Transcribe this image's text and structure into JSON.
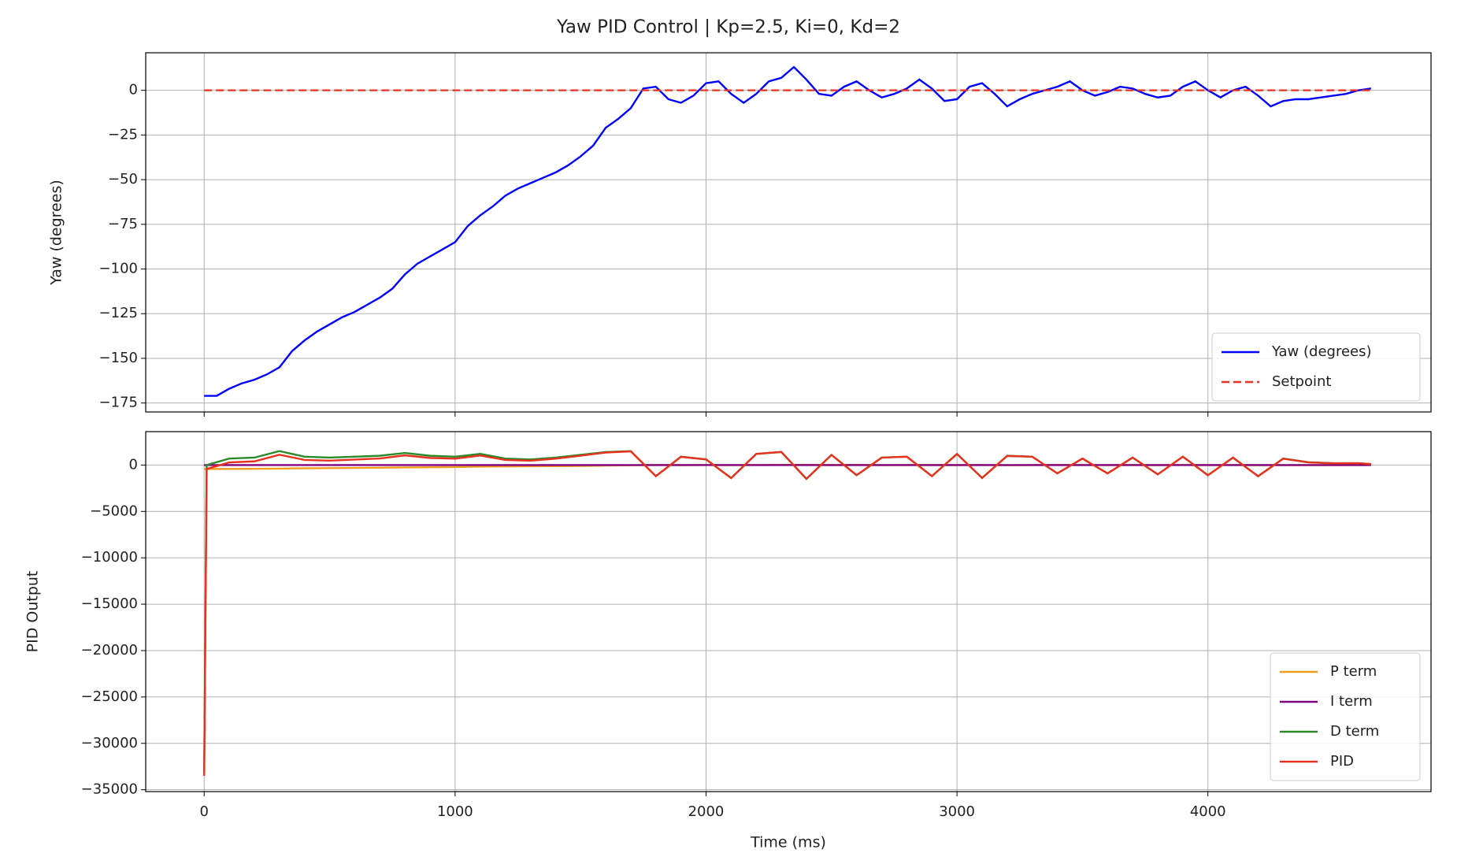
{
  "title": "Yaw PID Control | Kp=2.5, Ki=0, Kd=2",
  "chart_data": [
    {
      "type": "line",
      "ylabel": "Yaw (degrees)",
      "legend": "lower right",
      "grid": true,
      "xlim": [
        -233,
        4889
      ],
      "ylim": [
        -180,
        21
      ],
      "xticks": [
        0,
        1000,
        2000,
        3000,
        4000
      ],
      "yticks": [
        {
          "value": -175,
          "label": "−175"
        },
        {
          "value": -150,
          "label": "−150"
        },
        {
          "value": -125,
          "label": "−125"
        },
        {
          "value": -100,
          "label": "−100"
        },
        {
          "value": -75,
          "label": "−75"
        },
        {
          "value": -50,
          "label": "−50"
        },
        {
          "value": -25,
          "label": "−25"
        },
        0
      ],
      "series": [
        {
          "name": "Yaw (degrees)",
          "color": "#0000ff",
          "linestyle": "solid",
          "x": [
            0,
            50,
            100,
            150,
            200,
            250,
            300,
            350,
            400,
            450,
            500,
            550,
            600,
            650,
            700,
            750,
            800,
            850,
            900,
            950,
            1000,
            1050,
            1100,
            1150,
            1200,
            1250,
            1300,
            1350,
            1400,
            1450,
            1500,
            1550,
            1600,
            1650,
            1700,
            1750,
            1800,
            1850,
            1900,
            1950,
            2000,
            2050,
            2100,
            2150,
            2200,
            2250,
            2300,
            2350,
            2400,
            2450,
            2500,
            2550,
            2600,
            2650,
            2700,
            2750,
            2800,
            2850,
            2900,
            2950,
            3000,
            3050,
            3100,
            3150,
            3200,
            3250,
            3300,
            3350,
            3400,
            3450,
            3500,
            3550,
            3600,
            3650,
            3700,
            3750,
            3800,
            3850,
            3900,
            3950,
            4000,
            4050,
            4100,
            4150,
            4200,
            4250,
            4300,
            4350,
            4400,
            4450,
            4500,
            4550,
            4600,
            4650
          ],
          "values": [
            -171,
            -171,
            -167,
            -164,
            -162,
            -159,
            -155,
            -146,
            -140,
            -135,
            -131,
            -127,
            -124,
            -120,
            -116,
            -111,
            -103,
            -97,
            -93,
            -89,
            -85,
            -76,
            -70,
            -65,
            -59,
            -55,
            -52,
            -49,
            -46,
            -42,
            -37,
            -31,
            -21,
            -16,
            -10,
            1,
            2,
            -5,
            -7,
            -3,
            4,
            5,
            -2,
            -7,
            -2,
            5,
            7,
            13,
            6,
            -2,
            -3,
            2,
            5,
            0,
            -4,
            -2,
            1,
            6,
            1,
            -6,
            -5,
            2,
            4,
            -2,
            -9,
            -5,
            -2,
            0,
            2,
            5,
            0,
            -3,
            -1,
            2,
            1,
            -2,
            -4,
            -3,
            2,
            5,
            0,
            -4,
            0,
            2,
            -3,
            -9,
            -6,
            -5,
            -5,
            -4,
            -3,
            -2,
            0,
            1
          ]
        },
        {
          "name": "Setpoint",
          "color": "#e8311e",
          "linestyle": "dashed",
          "x": [
            0,
            4650
          ],
          "values": [
            0,
            0
          ]
        }
      ]
    },
    {
      "type": "line",
      "ylabel": "PID Output",
      "xlabel": "Time (ms)",
      "legend": "lower right",
      "grid": true,
      "xlim": [
        -233,
        4889
      ],
      "ylim": [
        -35200,
        3600
      ],
      "xticks": [
        0,
        1000,
        2000,
        3000,
        4000
      ],
      "yticks": [
        {
          "value": -35000,
          "label": "−35000"
        },
        {
          "value": -30000,
          "label": "−30000"
        },
        {
          "value": -25000,
          "label": "−25000"
        },
        {
          "value": -20000,
          "label": "−20000"
        },
        {
          "value": -15000,
          "label": "−15000"
        },
        {
          "value": -10000,
          "label": "−10000"
        },
        {
          "value": -5000,
          "label": "−5000"
        },
        0
      ],
      "series": [
        {
          "name": "P term",
          "color": "#f39c1e",
          "linestyle": "solid",
          "x": [
            0,
            10,
            100,
            200,
            300,
            400,
            500,
            600,
            700,
            800,
            900,
            1000,
            1100,
            1200,
            1300,
            1400,
            1500,
            1600,
            1700,
            1800,
            1900,
            2000,
            2100,
            2200,
            2300,
            2400,
            2500,
            2600,
            2700,
            2800,
            2900,
            3000,
            3100,
            3200,
            3300,
            3400,
            3500,
            3600,
            3700,
            3800,
            3900,
            4000,
            4100,
            4200,
            4300,
            4400,
            4500,
            4600,
            4650
          ],
          "values": [
            -428,
            -428,
            -418,
            -405,
            -388,
            -350,
            -328,
            -310,
            -290,
            -258,
            -233,
            -213,
            -175,
            -148,
            -130,
            -115,
            -93,
            -53,
            -25,
            5,
            -18,
            10,
            -5,
            -5,
            18,
            15,
            -8,
            13,
            -10,
            3,
            3,
            -13,
            10,
            -23,
            -5,
            5,
            0,
            -3,
            3,
            -10,
            5,
            0,
            0,
            -8,
            -15,
            -13,
            -8,
            0,
            3
          ]
        },
        {
          "name": "I term",
          "color": "#800080",
          "linestyle": "solid",
          "x": [
            0,
            10,
            100,
            200,
            300,
            400,
            500,
            600,
            700,
            800,
            900,
            1000,
            1100,
            1200,
            1300,
            1400,
            1500,
            1600,
            1700,
            1800,
            1900,
            2000,
            2100,
            2200,
            2300,
            2400,
            2500,
            2600,
            2700,
            2800,
            2900,
            3000,
            3100,
            3200,
            3300,
            3400,
            3500,
            3600,
            3700,
            3800,
            3900,
            4000,
            4100,
            4200,
            4300,
            4400,
            4500,
            4600,
            4650
          ],
          "values": [
            0,
            0,
            0,
            0,
            0,
            0,
            0,
            0,
            0,
            0,
            0,
            0,
            0,
            0,
            0,
            0,
            0,
            0,
            0,
            0,
            0,
            0,
            0,
            0,
            0,
            0,
            0,
            0,
            0,
            0,
            0,
            0,
            0,
            0,
            0,
            0,
            0,
            0,
            0,
            0,
            0,
            0,
            0,
            0,
            0,
            0,
            0,
            0,
            0
          ]
        },
        {
          "name": "D term",
          "color": "#2a8a2a",
          "linestyle": "solid",
          "x": [
            0,
            10,
            100,
            200,
            300,
            400,
            500,
            600,
            700,
            800,
            900,
            1000,
            1100,
            1200,
            1300,
            1400,
            1500,
            1600,
            1700,
            1800,
            1900,
            2000,
            2100,
            2200,
            2300,
            2400,
            2500,
            2600,
            2700,
            2800,
            2900,
            3000,
            3100,
            3200,
            3300,
            3400,
            3500,
            3600,
            3700,
            3800,
            3900,
            4000,
            4100,
            4200,
            4300,
            4400,
            4500,
            4600,
            4650
          ],
          "values": [
            -33072,
            0,
            700,
            800,
            1500,
            900,
            800,
            900,
            1000,
            1300,
            1000,
            900,
            1200,
            700,
            600,
            800,
            1100,
            1400,
            1500,
            -1200,
            900,
            600,
            -1400,
            1200,
            1400,
            -1500,
            1100,
            -1100,
            800,
            900,
            -1200,
            1200,
            -1400,
            1000,
            900,
            -900,
            700,
            -900,
            800,
            -1000,
            900,
            -1100,
            800,
            -1200,
            700,
            300,
            200,
            200,
            100
          ]
        },
        {
          "name": "PID",
          "color": "#e8311e",
          "linestyle": "solid",
          "x": [
            0,
            10,
            100,
            200,
            300,
            400,
            500,
            600,
            700,
            800,
            900,
            1000,
            1100,
            1200,
            1300,
            1400,
            1500,
            1600,
            1700,
            1800,
            1900,
            2000,
            2100,
            2200,
            2300,
            2400,
            2500,
            2600,
            2700,
            2800,
            2900,
            3000,
            3100,
            3200,
            3300,
            3400,
            3500,
            3600,
            3700,
            3800,
            3900,
            4000,
            4100,
            4200,
            4300,
            4400,
            4500,
            4600,
            4650
          ],
          "values": [
            -33500,
            -428,
            282,
            395,
            1112,
            550,
            472,
            590,
            710,
            1042,
            767,
            687,
            1025,
            552,
            470,
            685,
            1007,
            1347,
            1475,
            -1195,
            882,
            610,
            -1405,
            1195,
            1418,
            -1485,
            1092,
            -1087,
            790,
            903,
            -1197,
            1187,
            -1390,
            977,
            895,
            -895,
            700,
            -903,
            803,
            -1010,
            905,
            -1100,
            800,
            -1208,
            685,
            287,
            192,
            200,
            103
          ]
        }
      ]
    }
  ]
}
